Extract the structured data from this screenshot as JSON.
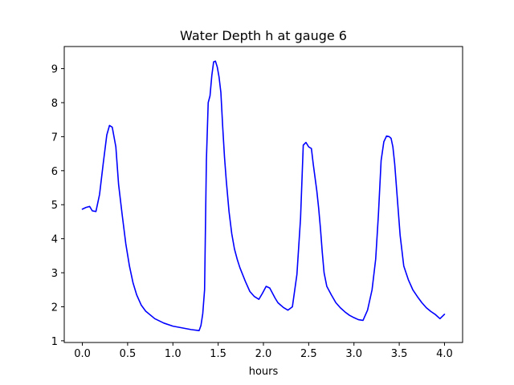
{
  "chart_data": {
    "type": "line",
    "title": "Water Depth h at gauge 6",
    "xlabel": "hours",
    "ylabel": "",
    "xlim": [
      -0.2,
      4.2
    ],
    "ylim": [
      0.95,
      9.65
    ],
    "xticks": [
      0.0,
      0.5,
      1.0,
      1.5,
      2.0,
      2.5,
      3.0,
      3.5,
      4.0
    ],
    "xtick_labels": [
      "0.0",
      "0.5",
      "1.0",
      "1.5",
      "2.0",
      "2.5",
      "3.0",
      "3.5",
      "4.0"
    ],
    "yticks": [
      1,
      2,
      3,
      4,
      5,
      6,
      7,
      8,
      9
    ],
    "ytick_labels": [
      "1",
      "2",
      "3",
      "4",
      "5",
      "6",
      "7",
      "8",
      "9"
    ],
    "grid": false,
    "legend": "none",
    "series": [
      {
        "color": "#0000ff",
        "x": [
          0.0,
          0.04,
          0.08,
          0.11,
          0.15,
          0.19,
          0.23,
          0.27,
          0.3,
          0.33,
          0.37,
          0.4,
          0.44,
          0.48,
          0.52,
          0.56,
          0.6,
          0.65,
          0.7,
          0.8,
          0.9,
          1.0,
          1.1,
          1.2,
          1.29,
          1.31,
          1.33,
          1.35,
          1.37,
          1.39,
          1.41,
          1.43,
          1.45,
          1.47,
          1.49,
          1.51,
          1.53,
          1.55,
          1.57,
          1.59,
          1.62,
          1.65,
          1.68,
          1.71,
          1.74,
          1.77,
          1.8,
          1.85,
          1.9,
          1.95,
          1.99,
          2.03,
          2.07,
          2.1,
          2.13,
          2.16,
          2.19,
          2.22,
          2.27,
          2.32,
          2.37,
          2.41,
          2.44,
          2.47,
          2.5,
          2.53,
          2.55,
          2.57,
          2.59,
          2.61,
          2.63,
          2.65,
          2.67,
          2.7,
          2.75,
          2.8,
          2.85,
          2.9,
          2.95,
          3.0,
          3.05,
          3.1,
          3.15,
          3.2,
          3.24,
          3.27,
          3.3,
          3.33,
          3.36,
          3.39,
          3.41,
          3.43,
          3.45,
          3.47,
          3.49,
          3.51,
          3.55,
          3.6,
          3.65,
          3.7,
          3.75,
          3.8,
          3.85,
          3.9,
          3.95,
          4.0
        ],
        "y": [
          4.87,
          4.92,
          4.95,
          4.82,
          4.8,
          5.3,
          6.2,
          7.05,
          7.33,
          7.28,
          6.7,
          5.6,
          4.7,
          3.85,
          3.2,
          2.7,
          2.35,
          2.05,
          1.87,
          1.65,
          1.52,
          1.43,
          1.38,
          1.33,
          1.3,
          1.45,
          1.8,
          2.5,
          6.3,
          8.0,
          8.2,
          8.8,
          9.2,
          9.22,
          9.05,
          8.75,
          8.3,
          7.3,
          6.4,
          5.7,
          4.8,
          4.15,
          3.7,
          3.4,
          3.15,
          2.95,
          2.75,
          2.45,
          2.3,
          2.22,
          2.4,
          2.6,
          2.55,
          2.4,
          2.25,
          2.12,
          2.05,
          1.98,
          1.9,
          2.0,
          2.95,
          4.6,
          6.75,
          6.83,
          6.7,
          6.65,
          6.2,
          5.8,
          5.4,
          4.9,
          4.3,
          3.6,
          3.0,
          2.6,
          2.35,
          2.12,
          1.97,
          1.85,
          1.75,
          1.68,
          1.62,
          1.6,
          1.9,
          2.5,
          3.4,
          4.7,
          6.3,
          6.85,
          7.02,
          7.0,
          6.95,
          6.7,
          6.2,
          5.5,
          4.8,
          4.1,
          3.2,
          2.8,
          2.5,
          2.3,
          2.12,
          1.97,
          1.86,
          1.77,
          1.65,
          1.78
        ]
      }
    ]
  }
}
